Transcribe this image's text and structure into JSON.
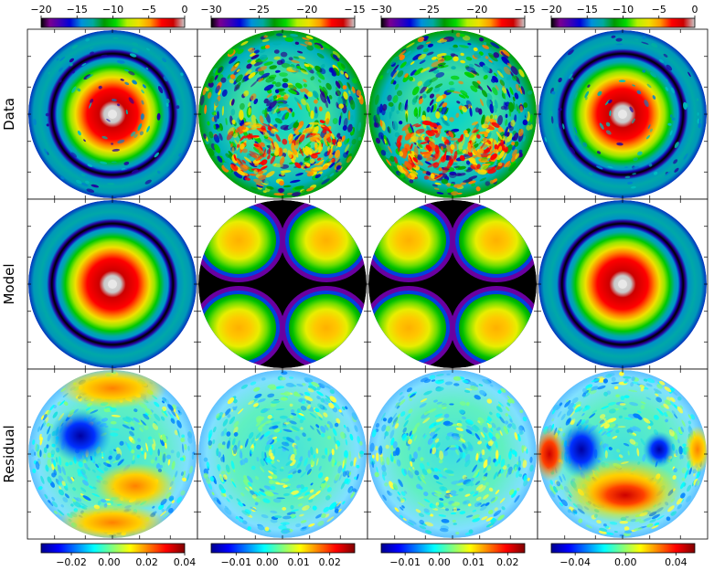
{
  "figure": {
    "row_labels": [
      "Data",
      "Model",
      "Residual"
    ]
  },
  "chart_data": {
    "type": "heatmap",
    "layout": {
      "rows": 3,
      "columns": 4,
      "projection": "circular disk map"
    },
    "top_colorbars": [
      {
        "range": [
          -20,
          0
        ],
        "ticks": [
          -20,
          -15,
          -10,
          -5,
          0
        ],
        "tick_labels": [
          "−20",
          "−15",
          "−10",
          "−5",
          "0"
        ],
        "colormap": "nipy_spectral",
        "position": "top"
      },
      {
        "range": [
          -30,
          -15
        ],
        "ticks": [
          -30,
          -25,
          -20,
          -15
        ],
        "tick_labels": [
          "−30",
          "−25",
          "−20",
          "−15"
        ],
        "colormap": "nipy_spectral",
        "position": "top"
      },
      {
        "range": [
          -30,
          -15
        ],
        "ticks": [
          -30,
          -25,
          -20,
          -15
        ],
        "tick_labels": [
          "−30",
          "−25",
          "−20",
          "−15"
        ],
        "colormap": "nipy_spectral",
        "position": "top"
      },
      {
        "range": [
          -20,
          0
        ],
        "ticks": [
          -20,
          -15,
          -10,
          -5,
          0
        ],
        "tick_labels": [
          "−20",
          "−15",
          "−10",
          "−5",
          "0"
        ],
        "colormap": "nipy_spectral",
        "position": "top"
      }
    ],
    "bottom_colorbars": [
      {
        "range": [
          -0.036,
          0.04
        ],
        "ticks": [
          -0.02,
          0.0,
          0.02,
          0.04
        ],
        "tick_labels": [
          "−0.02",
          "0.00",
          "0.02",
          "0.04"
        ],
        "colormap": "jet",
        "position": "bottom"
      },
      {
        "range": [
          -0.018,
          0.028
        ],
        "ticks": [
          -0.01,
          0.0,
          0.01,
          0.02
        ],
        "tick_labels": [
          "−0.01",
          "0.00",
          "0.01",
          "0.02"
        ],
        "colormap": "jet",
        "position": "bottom"
      },
      {
        "range": [
          -0.017,
          0.025
        ],
        "ticks": [
          -0.01,
          0.0,
          0.01,
          0.02
        ],
        "tick_labels": [
          "−0.01",
          "0.00",
          "0.01",
          "0.02"
        ],
        "colormap": "jet",
        "position": "bottom"
      },
      {
        "range": [
          -0.059,
          0.055
        ],
        "ticks": [
          -0.04,
          0.0,
          0.04
        ],
        "tick_labels": [
          "−0.04",
          "0.00",
          "0.04"
        ],
        "colormap": "jet",
        "position": "bottom"
      }
    ],
    "panels": [
      {
        "row": "Data",
        "col": 1,
        "pattern": "central peak with outer dark ring",
        "noisy": true
      },
      {
        "row": "Data",
        "col": 2,
        "pattern": "speckled noise field",
        "noisy": true
      },
      {
        "row": "Data",
        "col": 3,
        "pattern": "speckled noise field",
        "noisy": true
      },
      {
        "row": "Data",
        "col": 4,
        "pattern": "central peak with outer dark ring",
        "noisy": true
      },
      {
        "row": "Model",
        "col": 1,
        "pattern": "central peak with outer dark ring",
        "noisy": false
      },
      {
        "row": "Model",
        "col": 2,
        "pattern": "four-lobe cross",
        "noisy": false
      },
      {
        "row": "Model",
        "col": 3,
        "pattern": "four-lobe cross",
        "noisy": false
      },
      {
        "row": "Model",
        "col": 4,
        "pattern": "central peak with outer dark ring",
        "noisy": false
      },
      {
        "row": "Residual",
        "col": 1,
        "pattern": "residual noise with broad structure",
        "noisy": true
      },
      {
        "row": "Residual",
        "col": 2,
        "pattern": "residual noise",
        "noisy": true
      },
      {
        "row": "Residual",
        "col": 3,
        "pattern": "residual noise",
        "noisy": true
      },
      {
        "row": "Residual",
        "col": 4,
        "pattern": "residual noise with red lower lobe and blue left blob",
        "noisy": true
      }
    ]
  }
}
